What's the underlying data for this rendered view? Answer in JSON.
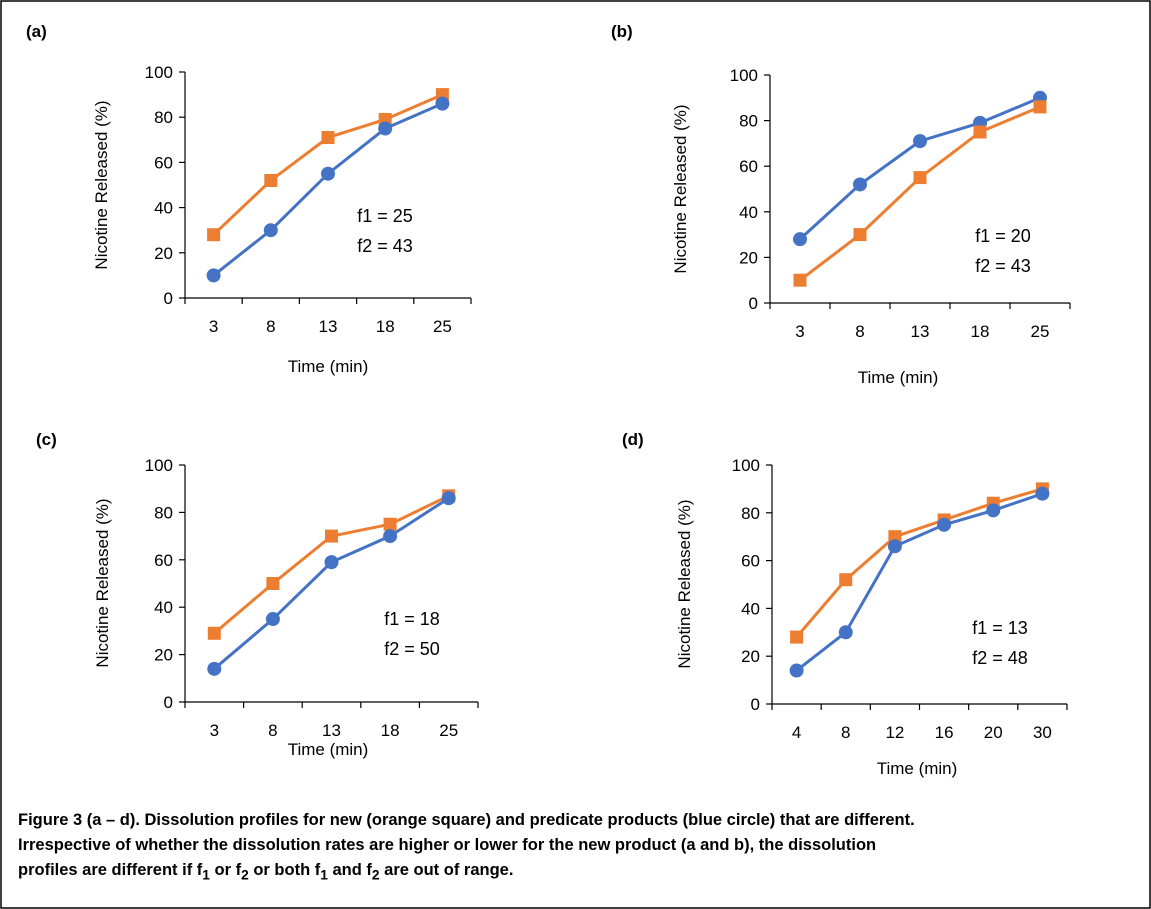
{
  "panels": [
    {
      "id": "a",
      "label": "(a)"
    },
    {
      "id": "b",
      "label": "(b)"
    },
    {
      "id": "c",
      "label": "(c)"
    },
    {
      "id": "d",
      "label": "(d)"
    }
  ],
  "caption": {
    "line1": "Figure 3 (a – d). Dissolution profiles for new (orange square) and predicate products (blue circle) that are different.",
    "line2": "Irrespective of whether the dissolution rates are higher or lower for the new product (a and b), the dissolution",
    "line3_pre": "profiles are different if f",
    "sub1": "1",
    "line3_mid1": " or f",
    "sub2": "2",
    "line3_mid2": " or both f",
    "sub3": "1",
    "line3_mid3": " and f",
    "sub4": "2",
    "line3_post": " are out of range."
  },
  "colors": {
    "blue_series": "#4472C4",
    "orange_series": "#ED7D31",
    "axis": "#000000",
    "border": "#000000"
  },
  "chart_data": [
    {
      "type": "line",
      "panel": "(a)",
      "categories": [
        "3",
        "8",
        "13",
        "18",
        "25"
      ],
      "xlabel": "Time (min)",
      "ylabel": "Nicotine Released (%)",
      "ylim": [
        0,
        100
      ],
      "yticks": [
        "0",
        "20",
        "40",
        "60",
        "80",
        "100"
      ],
      "grid": false,
      "series": [
        {
          "marker": "square",
          "color": "#ED7D31",
          "values": [
            28,
            52,
            71,
            79,
            90
          ]
        },
        {
          "marker": "circle",
          "color": "#4472C4",
          "values": [
            10,
            30,
            55,
            75,
            86
          ]
        }
      ],
      "annotations": [
        "f1 = 25",
        "f2 = 43"
      ]
    },
    {
      "type": "line",
      "panel": "(b)",
      "categories": [
        "3",
        "8",
        "13",
        "18",
        "25"
      ],
      "xlabel": "Time (min)",
      "ylabel": "Nicotine Released (%)",
      "ylim": [
        0,
        100
      ],
      "yticks": [
        "0",
        "20",
        "40",
        "60",
        "80",
        "100"
      ],
      "grid": false,
      "series": [
        {
          "marker": "circle",
          "color": "#4472C4",
          "values": [
            28,
            52,
            71,
            79,
            90
          ]
        },
        {
          "marker": "square",
          "color": "#ED7D31",
          "values": [
            10,
            30,
            55,
            75,
            86
          ]
        }
      ],
      "annotations": [
        "f1 = 20",
        "f2 = 43"
      ]
    },
    {
      "type": "line",
      "panel": "(c)",
      "categories": [
        "3",
        "8",
        "13",
        "18",
        "25"
      ],
      "xlabel": "Time (min)",
      "ylabel": "Nicotine Released (%)",
      "ylim": [
        0,
        100
      ],
      "yticks": [
        "0",
        "20",
        "40",
        "60",
        "80",
        "100"
      ],
      "grid": false,
      "series": [
        {
          "marker": "square",
          "color": "#ED7D31",
          "values": [
            29,
            50,
            70,
            75,
            87
          ]
        },
        {
          "marker": "circle",
          "color": "#4472C4",
          "values": [
            14,
            35,
            59,
            70,
            86
          ]
        }
      ],
      "annotations": [
        "f1 = 18",
        "f2 = 50"
      ]
    },
    {
      "type": "line",
      "panel": "(d)",
      "categories": [
        "4",
        "8",
        "12",
        "16",
        "20",
        "30"
      ],
      "xlabel": "Time (min)",
      "ylabel": "Nicotine Released (%)",
      "ylim": [
        0,
        100
      ],
      "yticks": [
        "0",
        "20",
        "40",
        "60",
        "80",
        "100"
      ],
      "grid": false,
      "series": [
        {
          "marker": "square",
          "color": "#ED7D31",
          "values": [
            28,
            52,
            70,
            77,
            84,
            90
          ]
        },
        {
          "marker": "circle",
          "color": "#4472C4",
          "values": [
            14,
            30,
            66,
            75,
            81,
            88
          ]
        }
      ],
      "annotations": [
        "f1 = 13",
        "f2 = 48"
      ]
    }
  ]
}
